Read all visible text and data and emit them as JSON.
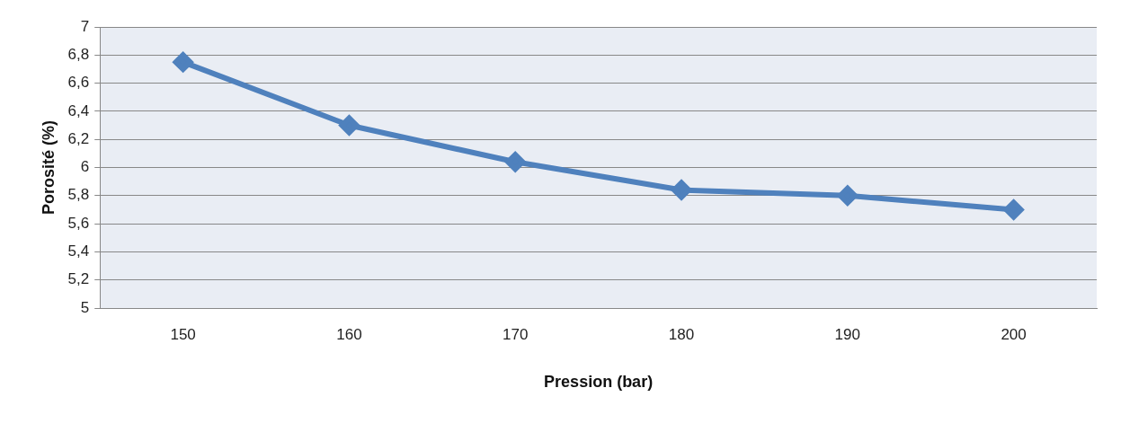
{
  "chart_data": {
    "type": "line",
    "xlabel": "Pression (bar)",
    "ylabel": "Porosité (%)",
    "categories": [
      "150",
      "160",
      "170",
      "180",
      "190",
      "200"
    ],
    "series": [
      {
        "color": "#4f81bd",
        "values": [
          6.75,
          6.3,
          6.04,
          5.84,
          5.8,
          5.7
        ]
      }
    ],
    "ylim": [
      5,
      7
    ],
    "yticks": [
      5,
      {
        "value": 5.2,
        "label": "5,2"
      },
      {
        "value": 5.4,
        "label": "5,4"
      },
      {
        "value": 5.6,
        "label": "5,6"
      },
      {
        "value": 5.8,
        "label": "5,8"
      },
      6,
      {
        "value": 6.2,
        "label": "6,2"
      },
      {
        "value": 6.4,
        "label": "6,4"
      },
      {
        "value": 6.6,
        "label": "6,6"
      },
      {
        "value": 6.8,
        "label": "6,8"
      },
      7
    ],
    "grid": "y",
    "legend": false,
    "marker": "diamond",
    "line_style": "solid"
  }
}
